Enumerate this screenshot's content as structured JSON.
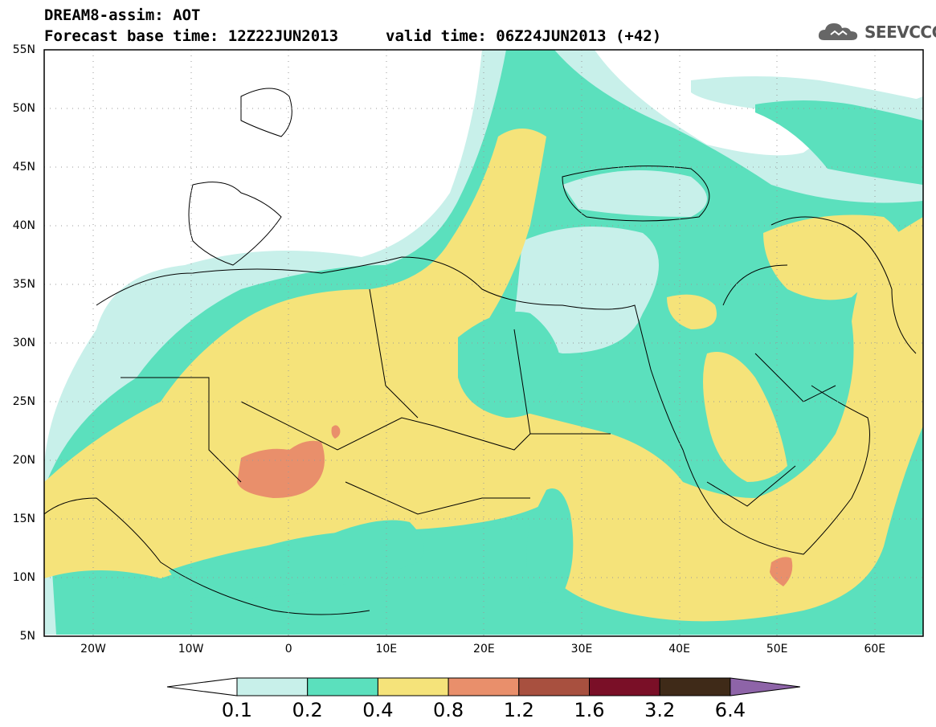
{
  "header": {
    "title": "DREAM8-assim: AOT",
    "base_time": "Forecast base time: 12Z22JUN2013",
    "valid_time": "valid time: 06Z24JUN2013 (+42)"
  },
  "logo": {
    "text": "SEEVCCC",
    "icon": "cloud-icon"
  },
  "axes": {
    "lat_ticks": [
      "55N",
      "50N",
      "45N",
      "40N",
      "35N",
      "30N",
      "25N",
      "20N",
      "15N",
      "10N",
      "5N"
    ],
    "lon_ticks": [
      "20W",
      "10W",
      "0",
      "10E",
      "20E",
      "30E",
      "40E",
      "50E",
      "60E"
    ]
  },
  "colorbar": {
    "levels": [
      "0.1",
      "0.2",
      "0.4",
      "0.8",
      "1.2",
      "1.6",
      "3.2",
      "6.4"
    ],
    "colors": [
      "#c8f0ea",
      "#5be0bd",
      "#f5e37a",
      "#e98f6b",
      "#a8503f",
      "#7a0f27",
      "#3f2a18",
      "#8e64a8"
    ],
    "over_color": "#8e64a8",
    "under_color": "#ffffff"
  }
}
